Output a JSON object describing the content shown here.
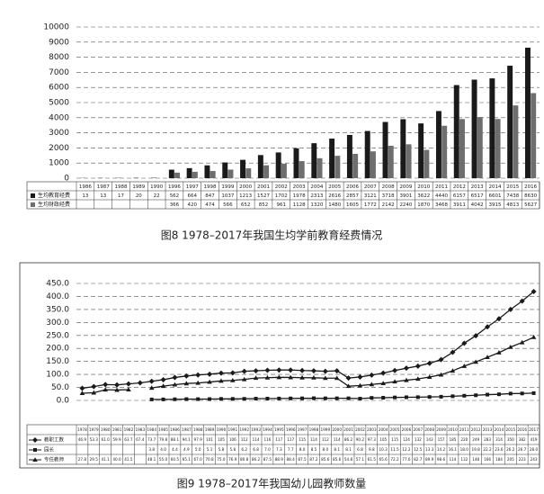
{
  "chart_data": [
    {
      "type": "bar",
      "caption": "图8 1978–2017年我国生均学前教育经费情况",
      "categories": [
        "1986",
        "1987",
        "1988",
        "1989",
        "1990",
        "1996",
        "1997",
        "1998",
        "1999",
        "2000",
        "2001",
        "2002",
        "2003",
        "2004",
        "2005",
        "2006",
        "2007",
        "2008",
        "2009",
        "2010",
        "2011",
        "2012",
        "2013",
        "2014",
        "2015",
        "2016"
      ],
      "series": [
        {
          "name": "生均教育经费",
          "color": "#1a1a1a",
          "values": [
            13,
            13,
            17,
            20,
            22,
            562,
            664,
            847,
            1037,
            1213,
            1527,
            1702,
            1978,
            2313,
            2616,
            2857,
            3121,
            3718,
            3901,
            3622,
            4440,
            6157,
            6517,
            6601,
            7438,
            8630
          ]
        },
        {
          "name": "生均财政经费",
          "color": "#6e6e6e",
          "values": [
            null,
            null,
            null,
            null,
            null,
            366,
            420,
            474,
            566,
            652,
            852,
            961,
            1128,
            1320,
            1480,
            1605,
            1772,
            2142,
            2240,
            1870,
            3468,
            3911,
            4042,
            3915,
            4813,
            5627
          ]
        }
      ],
      "ylim": [
        0,
        10000
      ],
      "yticks": [
        0,
        1000,
        2000,
        3000,
        4000,
        5000,
        6000,
        7000,
        8000,
        9000,
        10000
      ],
      "grid": true
    },
    {
      "type": "line",
      "caption": "图9 1978–2017年我国幼儿园教师数量",
      "categories": [
        "1978",
        "1979",
        "1980",
        "1981",
        "1982",
        "1983",
        "1984",
        "1985",
        "1986",
        "1987",
        "1988",
        "1989",
        "1990",
        "1991",
        "1992",
        "1993",
        "1994",
        "1995",
        "1996",
        "1997",
        "1998",
        "1999",
        "2000",
        "2001",
        "2002",
        "2003",
        "2004",
        "2005",
        "2006",
        "2007",
        "2008",
        "2009",
        "2010",
        "2011",
        "2012",
        "2013",
        "2014",
        "2015",
        "2016",
        "2017"
      ],
      "series": [
        {
          "name": "教职工数",
          "color": "#1a1a1a",
          "marker": "diamond",
          "values": [
            46.9,
            53.3,
            61.0,
            59.9,
            63.7,
            67.4,
            73.7,
            79.8,
            88.1,
            94.1,
            97.9,
            101,
            105,
            106,
            112,
            114,
            116,
            117,
            117,
            115,
            114,
            112,
            114,
            86.2,
            90.2,
            97.3,
            105,
            115,
            124,
            132,
            143,
            157,
            185,
            220,
            249,
            283,
            314,
            350,
            382,
            419
          ],
          "value_labels": [
            "46.9",
            "53.3",
            "61.0",
            "59.9",
            "63.7",
            "67.4",
            "73.7",
            "79.8",
            "88.1",
            "94.1",
            "97.9",
            "101",
            "105",
            "106",
            "112",
            "114",
            "116",
            "117",
            "117",
            "115",
            "114",
            "112",
            "114",
            "86.2",
            "90.2",
            "97.3",
            "105",
            "115",
            "124",
            "132",
            "143",
            "157",
            "185",
            "220",
            "249",
            "283",
            "314",
            "350",
            "382",
            "419"
          ]
        },
        {
          "name": "园长",
          "color": "#1a1a1a",
          "marker": "square",
          "values": [
            null,
            null,
            null,
            null,
            null,
            null,
            3.8,
            4.0,
            4.4,
            4.9,
            5.0,
            5.1,
            5.8,
            5.8,
            6.2,
            6.8,
            7.0,
            7.3,
            7.7,
            8.0,
            8.5,
            8.0,
            8.1,
            8.1,
            6.8,
            9.8,
            10.3,
            11.5,
            12.2,
            12.5,
            13.3,
            14.2,
            16.1,
            18.0,
            19.8,
            22.2,
            23.6,
            26.2,
            26.7,
            28.0
          ],
          "value_labels": [
            null,
            null,
            null,
            null,
            null,
            null,
            "3.8",
            "4.0",
            "4.4",
            "4.9",
            "5.0",
            "5.1",
            "5.8",
            "5.8",
            "6.2",
            "6.8",
            "7.0",
            "7.3",
            "7.7",
            "8.0",
            "8.5",
            "8.0",
            "8.1",
            "8.1",
            "6.8",
            "9.8",
            "10.3",
            "11.5",
            "12.2",
            "12.5",
            "13.3",
            "14.2",
            "16.1",
            "18.0",
            "19.8",
            "22.2",
            "23.6",
            "26.2",
            "26.7",
            "28.0"
          ]
        },
        {
          "name": "专任教师",
          "color": "#1a1a1a",
          "marker": "triangle",
          "values": [
            27.8,
            29.5,
            41.1,
            40.0,
            41.5,
            null,
            48.1,
            55.0,
            60.5,
            65.1,
            67.0,
            70.8,
            75.0,
            76.9,
            80.8,
            86.2,
            87.5,
            88.9,
            88.4,
            87.5,
            87.2,
            85.6,
            85.6,
            54.8,
            57.1,
            61.5,
            65.6,
            72.2,
            77.6,
            82.7,
            89.9,
            98.6,
            114,
            132,
            148,
            166,
            184,
            205,
            223,
            243
          ],
          "value_labels": [
            "27.8",
            "29.5",
            "41.1",
            "40.0",
            "41.5",
            null,
            "48.1",
            "55.0",
            "60.5",
            "65.1",
            "67.0",
            "70.8",
            "75.0",
            "76.9",
            "80.8",
            "86.2",
            "87.5",
            "88.9",
            "88.4",
            "87.5",
            "87.2",
            "85.6",
            "85.6",
            "54.8",
            "57.1",
            "61.5",
            "65.6",
            "72.2",
            "77.6",
            "82.7",
            "89.9",
            "98.6",
            "114",
            "132",
            "148",
            "166",
            "184",
            "205",
            "223",
            "243"
          ]
        }
      ],
      "ylim": [
        0,
        450
      ],
      "yticks": [
        {
          "value": 0,
          "label": "0.0"
        },
        {
          "value": 50,
          "label": "50.0"
        },
        {
          "value": 100,
          "label": "100.0"
        },
        {
          "value": 150,
          "label": "150.0"
        },
        {
          "value": 200,
          "label": "200.0"
        },
        {
          "value": 250,
          "label": "250.0"
        },
        {
          "value": 300,
          "label": "300.0"
        },
        {
          "value": 350,
          "label": "350.0"
        },
        {
          "value": 400,
          "label": "400.0"
        },
        {
          "value": 450,
          "label": "450.0"
        }
      ],
      "grid": true
    }
  ]
}
